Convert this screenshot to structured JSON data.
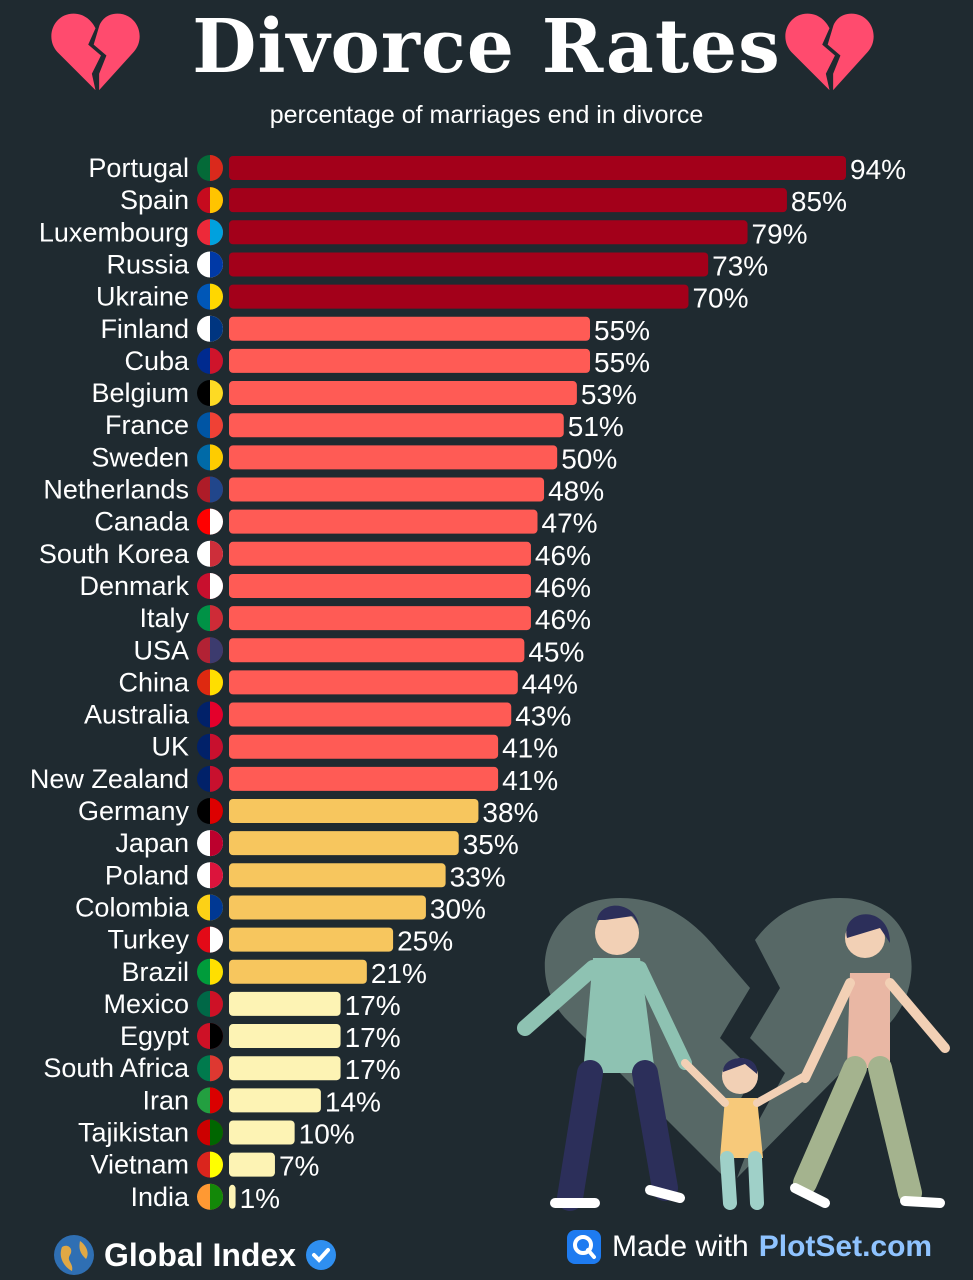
{
  "header": {
    "title": "Divorce Rates",
    "subtitle": "percentage of marriages end in divorce"
  },
  "colors": {
    "background": "#1f2a30",
    "tier_high": "#a3001a",
    "tier_mid": "#ff5b55",
    "tier_low": "#f7c65e",
    "tier_lowest": "#fdf3b4",
    "heart": "#ff4b6e"
  },
  "chart_data": {
    "type": "bar",
    "orientation": "horizontal",
    "title": "Divorce Rates",
    "subtitle": "percentage of marriages end in divorce",
    "xlim": [
      0,
      100
    ],
    "grid": false,
    "value_suffix": "%",
    "categories": [
      "Portugal",
      "Spain",
      "Luxembourg",
      "Russia",
      "Ukraine",
      "Finland",
      "Cuba",
      "Belgium",
      "France",
      "Sweden",
      "Netherlands",
      "Canada",
      "South Korea",
      "Denmark",
      "Italy",
      "USA",
      "China",
      "Australia",
      "UK",
      "New Zealand",
      "Germany",
      "Japan",
      "Poland",
      "Colombia",
      "Turkey",
      "Brazil",
      "Mexico",
      "Egypt",
      "South Africa",
      "Iran",
      "Tajikistan",
      "Vietnam",
      "India"
    ],
    "values": [
      94,
      85,
      79,
      73,
      70,
      55,
      55,
      53,
      51,
      50,
      48,
      47,
      46,
      46,
      46,
      45,
      44,
      43,
      41,
      41,
      38,
      35,
      33,
      30,
      25,
      21,
      17,
      17,
      17,
      14,
      10,
      7,
      1
    ],
    "tiers": [
      "high",
      "high",
      "high",
      "high",
      "high",
      "mid",
      "mid",
      "mid",
      "mid",
      "mid",
      "mid",
      "mid",
      "mid",
      "mid",
      "mid",
      "mid",
      "mid",
      "mid",
      "mid",
      "mid",
      "low",
      "low",
      "low",
      "low",
      "low",
      "low",
      "lowest",
      "lowest",
      "lowest",
      "lowest",
      "lowest",
      "lowest",
      "lowest"
    ],
    "flags": [
      "portugal-flag-icon",
      "spain-flag-icon",
      "luxembourg-flag-icon",
      "russia-flag-icon",
      "ukraine-flag-icon",
      "finland-flag-icon",
      "cuba-flag-icon",
      "belgium-flag-icon",
      "france-flag-icon",
      "sweden-flag-icon",
      "netherlands-flag-icon",
      "canada-flag-icon",
      "south-korea-flag-icon",
      "denmark-flag-icon",
      "italy-flag-icon",
      "usa-flag-icon",
      "china-flag-icon",
      "australia-flag-icon",
      "uk-flag-icon",
      "new-zealand-flag-icon",
      "germany-flag-icon",
      "japan-flag-icon",
      "poland-flag-icon",
      "colombia-flag-icon",
      "turkey-flag-icon",
      "brazil-flag-icon",
      "mexico-flag-icon",
      "egypt-flag-icon",
      "south-africa-flag-icon",
      "iran-flag-icon",
      "tajikistan-flag-icon",
      "vietnam-flag-icon",
      "india-flag-icon"
    ]
  },
  "footer": {
    "brand": "Global Index",
    "brand_icon": "globe-icon",
    "verified_icon": "verified-badge-icon",
    "made_with": "Made with",
    "tool": "PlotSet.com",
    "tool_icon": "plotset-logo-icon"
  },
  "illustration": {
    "description_icon": "family-breakup-illustration",
    "heart_icon": "broken-heart-icon"
  }
}
